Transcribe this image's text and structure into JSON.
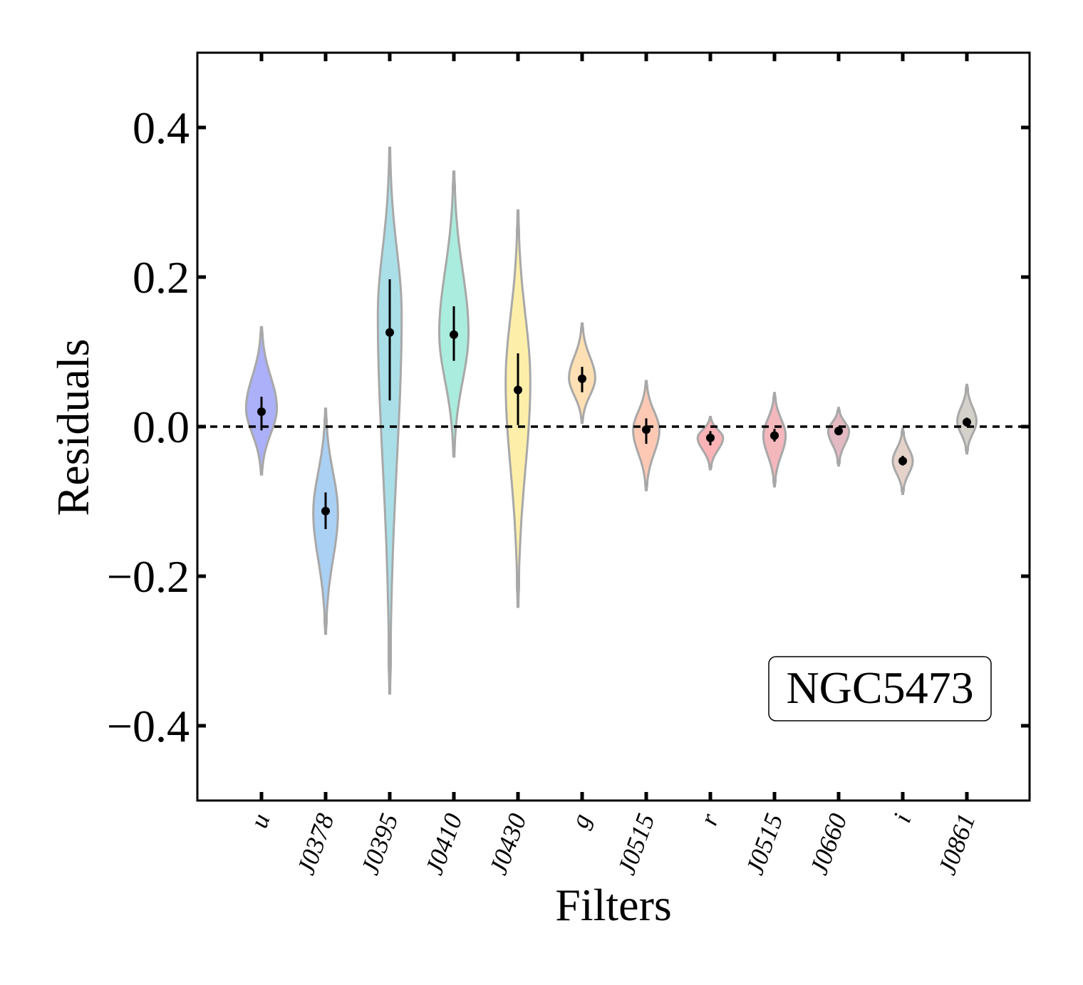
{
  "chart_data": {
    "type": "violin",
    "xlabel": "Filters",
    "ylabel": "Residuals",
    "ylim": [
      -0.5,
      0.5
    ],
    "yticks": [
      -0.4,
      -0.2,
      0.0,
      0.2,
      0.4
    ],
    "ytick_labels": [
      "−0.4",
      "−0.2",
      "0.0",
      "0.2",
      "0.4"
    ],
    "reference_line": 0.0,
    "annotation": "NGC5473",
    "annotation_position": "bottom-right",
    "categories": [
      "u",
      "J0378",
      "J0395",
      "J0410",
      "J0430",
      "g",
      "J0515",
      "r",
      "J0515",
      "J0660",
      "i",
      "J0861"
    ],
    "series": [
      {
        "name": "u",
        "color": "#8f96f5",
        "ymin": -0.064,
        "ymax": 0.133,
        "median": 0.02,
        "err_low": -0.005,
        "err_high": 0.04,
        "peak": 0.025,
        "max_halfwidth": 0.4
      },
      {
        "name": "J0378",
        "color": "#8ec0ef",
        "ymin": -0.277,
        "ymax": 0.024,
        "median": -0.113,
        "err_low": -0.137,
        "err_high": -0.088,
        "peak": -0.115,
        "max_halfwidth": 0.32
      },
      {
        "name": "J0395",
        "color": "#8ed4e0",
        "ymin": -0.357,
        "ymax": 0.373,
        "median": 0.126,
        "err_low": 0.035,
        "err_high": 0.197,
        "peak": 0.15,
        "max_halfwidth": 0.31
      },
      {
        "name": "J0410",
        "color": "#8ee6d2",
        "ymin": -0.04,
        "ymax": 0.341,
        "median": 0.123,
        "err_low": 0.088,
        "err_high": 0.161,
        "peak": 0.125,
        "max_halfwidth": 0.38
      },
      {
        "name": "J0430",
        "color": "#fce98e",
        "ymin": -0.241,
        "ymax": 0.289,
        "median": 0.049,
        "err_low": 0.002,
        "err_high": 0.098,
        "peak": 0.06,
        "max_halfwidth": 0.32
      },
      {
        "name": "g",
        "color": "#fdd69b",
        "ymin": 0.005,
        "ymax": 0.138,
        "median": 0.064,
        "err_low": 0.046,
        "err_high": 0.08,
        "peak": 0.065,
        "max_halfwidth": 0.34
      },
      {
        "name": "J0515",
        "color": "#fdb79b",
        "ymin": -0.085,
        "ymax": 0.061,
        "median": -0.004,
        "err_low": -0.023,
        "err_high": 0.011,
        "peak": -0.005,
        "max_halfwidth": 0.34
      },
      {
        "name": "r",
        "color": "#fb999d",
        "ymin": -0.057,
        "ymax": 0.013,
        "median": -0.015,
        "err_low": -0.025,
        "err_high": -0.006,
        "peak": -0.015,
        "max_halfwidth": 0.33
      },
      {
        "name": "J0515",
        "color": "#ef9fa5",
        "ymin": -0.08,
        "ymax": 0.045,
        "median": -0.012,
        "err_low": -0.02,
        "err_high": -0.003,
        "peak": -0.012,
        "max_halfwidth": 0.29
      },
      {
        "name": "J0660",
        "color": "#dba3ad",
        "ymin": -0.052,
        "ymax": 0.025,
        "median": -0.006,
        "err_low": -0.011,
        "err_high": 0.0,
        "peak": -0.006,
        "max_halfwidth": 0.27
      },
      {
        "name": "i",
        "color": "#dcc3b8",
        "ymin": -0.09,
        "ymax": -0.003,
        "median": -0.046,
        "err_low": -0.052,
        "err_high": -0.039,
        "peak": -0.046,
        "max_halfwidth": 0.26
      },
      {
        "name": "J0861",
        "color": "#c6c0b8",
        "ymin": -0.036,
        "ymax": 0.056,
        "median": 0.006,
        "err_low": 0.0,
        "err_high": 0.012,
        "peak": 0.007,
        "max_halfwidth": 0.25
      }
    ]
  }
}
